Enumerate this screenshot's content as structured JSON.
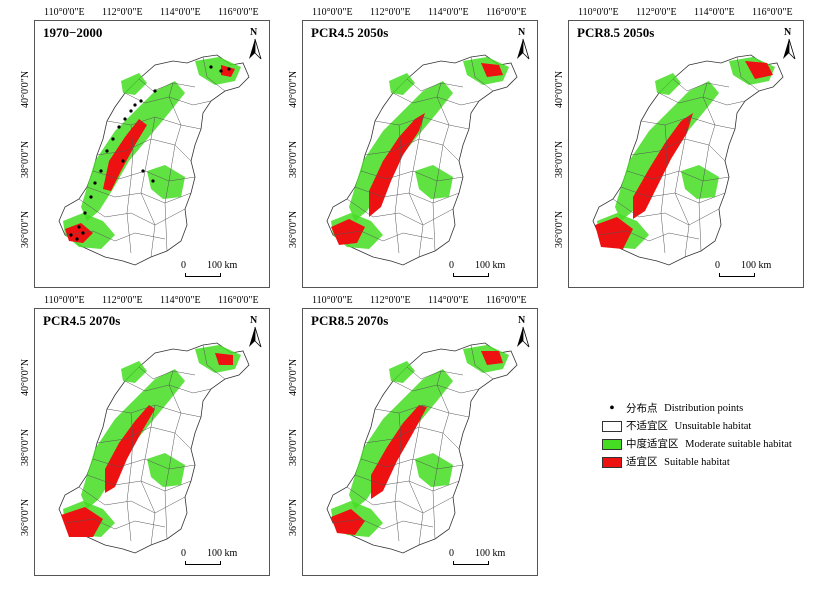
{
  "longitude_ticks": [
    "110°0'0\"E",
    "112°0'0\"E",
    "114°0'0\"E",
    "116°0'0\"E"
  ],
  "latitude_ticks": [
    "40°0'0\"N",
    "38°0'0\"N",
    "36°0'0\"N"
  ],
  "north_arrow_label": "N",
  "scale_bar": {
    "zero": "0",
    "label": "100 km"
  },
  "panels": [
    {
      "title": "1970−2000",
      "show_points": true
    },
    {
      "title": "PCR4.5 2050s",
      "show_points": false
    },
    {
      "title": "PCR8.5 2050s",
      "show_points": false
    },
    {
      "title": "PCR4.5 2070s",
      "show_points": false
    },
    {
      "title": "PCR8.5 2070s",
      "show_points": false
    }
  ],
  "legend": [
    {
      "symbol": "point",
      "label_zh": "分布点",
      "label_en": "Distribution points"
    },
    {
      "symbol": "swatch",
      "color": "#ffffff",
      "label_zh": "不适宜区",
      "label_en": "Unsuitable habitat"
    },
    {
      "symbol": "swatch",
      "color": "#44dd22",
      "label_zh": "中度适宜区",
      "label_en": "Moderate suitable habitat"
    },
    {
      "symbol": "swatch",
      "color": "#ee1111",
      "label_zh": "适宜区",
      "label_en": "Suitable habitat"
    }
  ],
  "colors": {
    "unsuitable": "#ffffff",
    "moderate": "#44dd22",
    "suitable": "#ee1111",
    "border": "#555555"
  }
}
